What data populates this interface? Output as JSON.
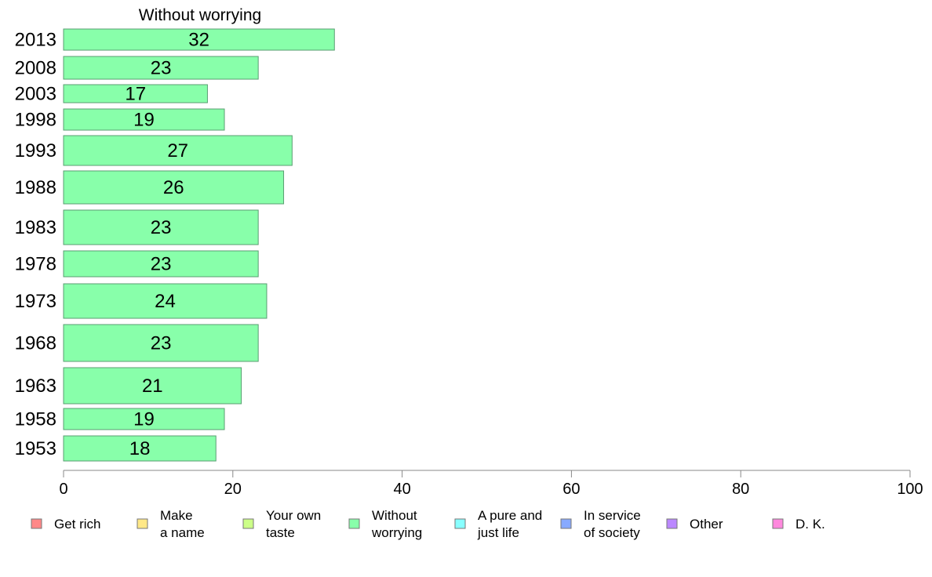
{
  "chart_data": {
    "type": "bar",
    "orientation": "horizontal",
    "title": "Without worrying",
    "categories": [
      "2013",
      "2008",
      "2003",
      "1998",
      "1993",
      "1988",
      "1983",
      "1978",
      "1973",
      "1968",
      "1963",
      "1958",
      "1953"
    ],
    "values": [
      32,
      23,
      17,
      19,
      27,
      26,
      23,
      23,
      24,
      23,
      21,
      19,
      18
    ],
    "xlim": [
      0,
      100
    ],
    "xticks": [
      "0",
      "20",
      "40",
      "60",
      "80",
      "100"
    ],
    "grid": false,
    "legend_position": "bottom",
    "legend": [
      {
        "label": [
          "Get rich"
        ],
        "color": "#ff8888"
      },
      {
        "label": [
          "Make",
          "a name"
        ],
        "color": "#ffe888"
      },
      {
        "label": [
          "Your own",
          "taste"
        ],
        "color": "#ccff88"
      },
      {
        "label": [
          "Without",
          "worrying"
        ],
        "color": "#88ffaa"
      },
      {
        "label": [
          "A pure and",
          "just life"
        ],
        "color": "#88ffff"
      },
      {
        "label": [
          "In service",
          "of society"
        ],
        "color": "#88aaff"
      },
      {
        "label": [
          "Other"
        ],
        "color": "#bb88ff"
      },
      {
        "label": [
          "D. K."
        ],
        "color": "#ff88dd"
      }
    ],
    "bar_color": "#88ffaa"
  }
}
